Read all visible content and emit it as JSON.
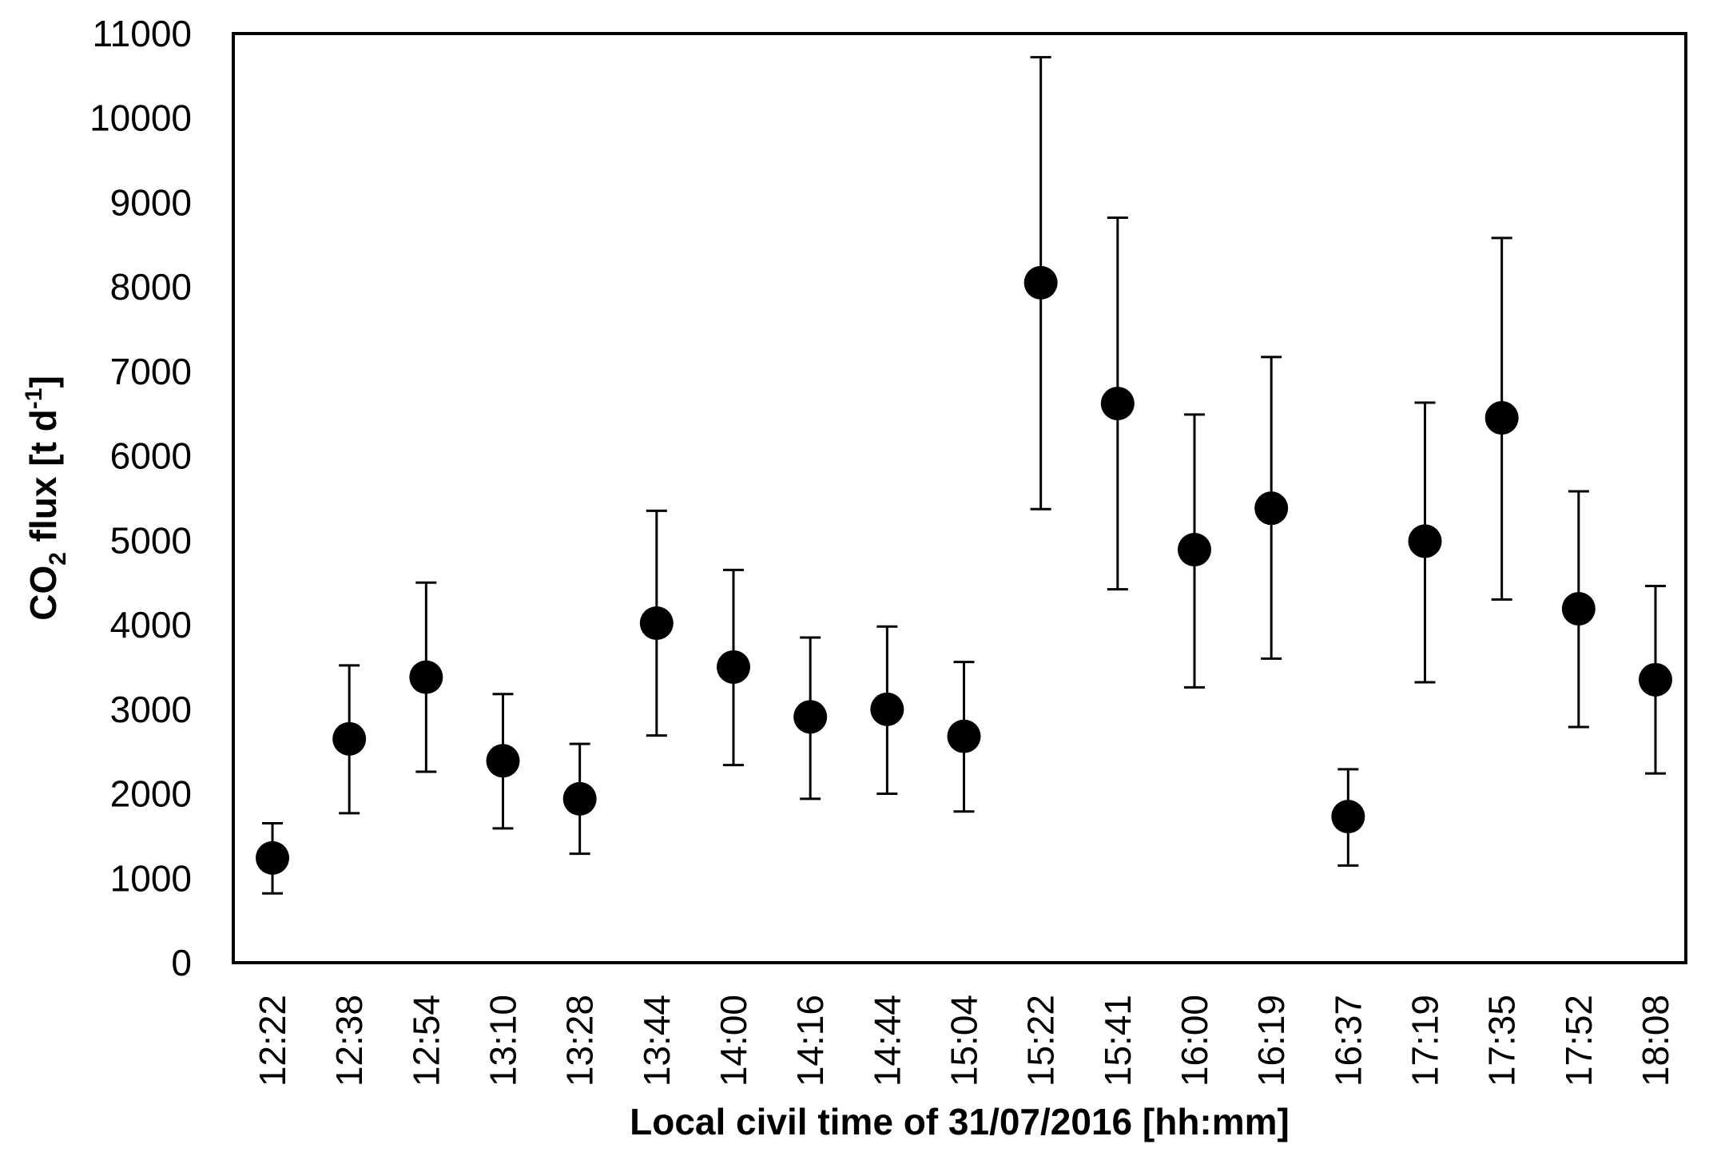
{
  "chart_data": {
    "type": "scatter",
    "title": "",
    "xlabel": "Local civil time of 31/07/2016 [hh:mm]",
    "ylabel": {
      "prefix": "CO",
      "sub": "2",
      "middle": " flux [t d",
      "sup": "-1",
      "suffix": "]"
    },
    "ylim": [
      0,
      11000
    ],
    "yticks": [
      0,
      1000,
      2000,
      3000,
      4000,
      5000,
      6000,
      7000,
      8000,
      9000,
      10000,
      11000
    ],
    "grid": false,
    "legend": "none",
    "marker_color": "#000000",
    "categories": [
      "12:22",
      "12:38",
      "12:54",
      "13:10",
      "13:28",
      "13:44",
      "14:00",
      "14:16",
      "14:44",
      "15:04",
      "15:22",
      "15:41",
      "16:00",
      "16:19",
      "16:37",
      "17:19",
      "17:35",
      "17:52",
      "18:08"
    ],
    "values": [
      1240,
      2650,
      3380,
      2390,
      1940,
      4020,
      3500,
      2910,
      3000,
      2680,
      8050,
      6620,
      4890,
      5380,
      1730,
      4990,
      6450,
      4190,
      3350
    ],
    "error_low": [
      820,
      1770,
      2260,
      1590,
      1290,
      2690,
      2340,
      1940,
      2000,
      1790,
      5370,
      4420,
      3260,
      3600,
      1150,
      3320,
      4300,
      2790,
      2240
    ],
    "error_high": [
      1650,
      3520,
      4500,
      3180,
      2590,
      5350,
      4650,
      3850,
      3980,
      3560,
      10720,
      8820,
      6490,
      7170,
      2290,
      6630,
      8580,
      5580,
      4460
    ]
  }
}
